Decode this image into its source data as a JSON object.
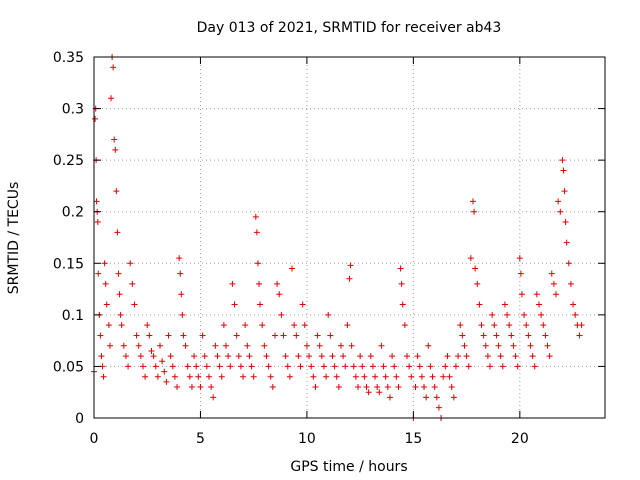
{
  "chart_data": {
    "type": "scatter",
    "title": "Day 013 of 2021, SRMTID for receiver ab43",
    "xlabel": "GPS time / hours",
    "ylabel": "SRMTID / TECUs",
    "xlim": [
      0,
      24
    ],
    "ylim": [
      0,
      0.35
    ],
    "x_ticks": [
      0,
      5,
      10,
      15,
      20
    ],
    "x_tick_labels": [
      "0",
      "5",
      "10",
      "15",
      "20"
    ],
    "y_ticks": [
      0,
      0.05,
      0.1,
      0.15,
      0.2,
      0.25,
      0.3,
      0.35
    ],
    "y_tick_labels": [
      "0",
      "0.05",
      "0.1",
      "0.15",
      "0.2",
      "0.25",
      "0.3",
      "0.35"
    ],
    "grid": true,
    "marker": "+",
    "color": "#e00000",
    "description": "dense per-satellite scatter; elevated values near 0-1 h and 21-23 h, minimum near 13-16 h",
    "series": [
      {
        "name": "SRMTID",
        "points": [
          [
            0.0,
            0.045
          ],
          [
            0.05,
            0.29
          ],
          [
            0.08,
            0.3
          ],
          [
            0.1,
            0.25
          ],
          [
            0.12,
            0.21
          ],
          [
            0.15,
            0.2
          ],
          [
            0.18,
            0.19
          ],
          [
            0.2,
            0.14
          ],
          [
            0.25,
            0.1
          ],
          [
            0.3,
            0.08
          ],
          [
            0.35,
            0.06
          ],
          [
            0.4,
            0.05
          ],
          [
            0.45,
            0.04
          ],
          [
            0.5,
            0.15
          ],
          [
            0.55,
            0.13
          ],
          [
            0.6,
            0.11
          ],
          [
            0.7,
            0.09
          ],
          [
            0.75,
            0.07
          ],
          [
            0.8,
            0.31
          ],
          [
            0.85,
            0.35
          ],
          [
            0.9,
            0.34
          ],
          [
            0.95,
            0.27
          ],
          [
            1.0,
            0.26
          ],
          [
            1.05,
            0.22
          ],
          [
            1.1,
            0.18
          ],
          [
            1.15,
            0.14
          ],
          [
            1.2,
            0.12
          ],
          [
            1.25,
            0.1
          ],
          [
            1.3,
            0.09
          ],
          [
            1.4,
            0.07
          ],
          [
            1.5,
            0.06
          ],
          [
            1.6,
            0.05
          ],
          [
            1.7,
            0.15
          ],
          [
            1.8,
            0.13
          ],
          [
            1.9,
            0.11
          ],
          [
            2.0,
            0.08
          ],
          [
            2.1,
            0.07
          ],
          [
            2.2,
            0.06
          ],
          [
            2.3,
            0.05
          ],
          [
            2.4,
            0.04
          ],
          [
            2.5,
            0.09
          ],
          [
            2.6,
            0.08
          ],
          [
            2.7,
            0.065
          ],
          [
            2.8,
            0.06
          ],
          [
            2.9,
            0.05
          ],
          [
            3.0,
            0.04
          ],
          [
            3.1,
            0.07
          ],
          [
            3.2,
            0.055
          ],
          [
            3.3,
            0.045
          ],
          [
            3.4,
            0.035
          ],
          [
            3.5,
            0.08
          ],
          [
            3.6,
            0.06
          ],
          [
            3.7,
            0.05
          ],
          [
            3.8,
            0.04
          ],
          [
            3.9,
            0.03
          ],
          [
            4.0,
            0.155
          ],
          [
            4.05,
            0.14
          ],
          [
            4.1,
            0.12
          ],
          [
            4.15,
            0.1
          ],
          [
            4.2,
            0.08
          ],
          [
            4.3,
            0.07
          ],
          [
            4.4,
            0.05
          ],
          [
            4.5,
            0.04
          ],
          [
            4.6,
            0.03
          ],
          [
            4.7,
            0.06
          ],
          [
            4.8,
            0.05
          ],
          [
            4.9,
            0.04
          ],
          [
            5.0,
            0.03
          ],
          [
            5.1,
            0.08
          ],
          [
            5.2,
            0.06
          ],
          [
            5.3,
            0.05
          ],
          [
            5.4,
            0.04
          ],
          [
            5.5,
            0.03
          ],
          [
            5.6,
            0.02
          ],
          [
            5.7,
            0.07
          ],
          [
            5.8,
            0.06
          ],
          [
            5.9,
            0.05
          ],
          [
            6.0,
            0.04
          ],
          [
            6.1,
            0.09
          ],
          [
            6.2,
            0.07
          ],
          [
            6.3,
            0.06
          ],
          [
            6.4,
            0.05
          ],
          [
            6.5,
            0.13
          ],
          [
            6.6,
            0.11
          ],
          [
            6.7,
            0.08
          ],
          [
            6.8,
            0.06
          ],
          [
            6.9,
            0.05
          ],
          [
            7.0,
            0.04
          ],
          [
            7.1,
            0.09
          ],
          [
            7.2,
            0.07
          ],
          [
            7.3,
            0.06
          ],
          [
            7.4,
            0.05
          ],
          [
            7.5,
            0.04
          ],
          [
            7.6,
            0.195
          ],
          [
            7.65,
            0.18
          ],
          [
            7.7,
            0.15
          ],
          [
            7.75,
            0.13
          ],
          [
            7.8,
            0.11
          ],
          [
            7.9,
            0.09
          ],
          [
            8.0,
            0.07
          ],
          [
            8.1,
            0.06
          ],
          [
            8.2,
            0.05
          ],
          [
            8.3,
            0.04
          ],
          [
            8.4,
            0.03
          ],
          [
            8.5,
            0.08
          ],
          [
            8.6,
            0.13
          ],
          [
            8.7,
            0.12
          ],
          [
            8.8,
            0.1
          ],
          [
            8.9,
            0.08
          ],
          [
            9.0,
            0.06
          ],
          [
            9.1,
            0.05
          ],
          [
            9.2,
            0.04
          ],
          [
            9.3,
            0.145
          ],
          [
            9.4,
            0.09
          ],
          [
            9.5,
            0.08
          ],
          [
            9.6,
            0.06
          ],
          [
            9.7,
            0.05
          ],
          [
            9.8,
            0.11
          ],
          [
            9.9,
            0.09
          ],
          [
            10.0,
            0.07
          ],
          [
            10.1,
            0.06
          ],
          [
            10.2,
            0.05
          ],
          [
            10.3,
            0.04
          ],
          [
            10.4,
            0.03
          ],
          [
            10.5,
            0.08
          ],
          [
            10.6,
            0.07
          ],
          [
            10.7,
            0.06
          ],
          [
            10.8,
            0.05
          ],
          [
            10.9,
            0.04
          ],
          [
            11.0,
            0.1
          ],
          [
            11.1,
            0.08
          ],
          [
            11.2,
            0.06
          ],
          [
            11.3,
            0.05
          ],
          [
            11.4,
            0.04
          ],
          [
            11.5,
            0.03
          ],
          [
            11.6,
            0.07
          ],
          [
            11.7,
            0.06
          ],
          [
            11.8,
            0.05
          ],
          [
            11.9,
            0.09
          ],
          [
            12.0,
            0.135
          ],
          [
            12.05,
            0.148
          ],
          [
            12.1,
            0.07
          ],
          [
            12.2,
            0.05
          ],
          [
            12.3,
            0.04
          ],
          [
            12.4,
            0.03
          ],
          [
            12.5,
            0.06
          ],
          [
            12.6,
            0.05
          ],
          [
            12.7,
            0.04
          ],
          [
            12.8,
            0.03
          ],
          [
            12.9,
            0.025
          ],
          [
            13.0,
            0.06
          ],
          [
            13.1,
            0.05
          ],
          [
            13.2,
            0.04
          ],
          [
            13.3,
            0.03
          ],
          [
            13.4,
            0.025
          ],
          [
            13.5,
            0.07
          ],
          [
            13.6,
            0.05
          ],
          [
            13.7,
            0.04
          ],
          [
            13.8,
            0.03
          ],
          [
            13.9,
            0.02
          ],
          [
            14.0,
            0.06
          ],
          [
            14.1,
            0.05
          ],
          [
            14.2,
            0.04
          ],
          [
            14.3,
            0.03
          ],
          [
            14.4,
            0.145
          ],
          [
            14.45,
            0.13
          ],
          [
            14.5,
            0.11
          ],
          [
            14.6,
            0.09
          ],
          [
            14.7,
            0.06
          ],
          [
            14.8,
            0.05
          ],
          [
            14.9,
            0.04
          ],
          [
            15.0,
            0.0
          ],
          [
            15.1,
            0.03
          ],
          [
            15.2,
            0.06
          ],
          [
            15.3,
            0.05
          ],
          [
            15.4,
            0.04
          ],
          [
            15.5,
            0.03
          ],
          [
            15.6,
            0.02
          ],
          [
            15.7,
            0.07
          ],
          [
            15.8,
            0.05
          ],
          [
            15.9,
            0.04
          ],
          [
            16.0,
            0.03
          ],
          [
            16.1,
            0.02
          ],
          [
            16.2,
            0.01
          ],
          [
            16.3,
            0.0
          ],
          [
            16.4,
            0.04
          ],
          [
            16.5,
            0.05
          ],
          [
            16.6,
            0.06
          ],
          [
            16.7,
            0.04
          ],
          [
            16.8,
            0.03
          ],
          [
            16.9,
            0.02
          ],
          [
            17.0,
            0.05
          ],
          [
            17.1,
            0.06
          ],
          [
            17.2,
            0.09
          ],
          [
            17.3,
            0.08
          ],
          [
            17.4,
            0.07
          ],
          [
            17.5,
            0.06
          ],
          [
            17.6,
            0.05
          ],
          [
            17.7,
            0.155
          ],
          [
            17.8,
            0.21
          ],
          [
            17.85,
            0.2
          ],
          [
            17.9,
            0.145
          ],
          [
            18.0,
            0.13
          ],
          [
            18.1,
            0.11
          ],
          [
            18.2,
            0.09
          ],
          [
            18.3,
            0.08
          ],
          [
            18.4,
            0.07
          ],
          [
            18.5,
            0.06
          ],
          [
            18.6,
            0.05
          ],
          [
            18.7,
            0.1
          ],
          [
            18.8,
            0.09
          ],
          [
            18.9,
            0.08
          ],
          [
            19.0,
            0.07
          ],
          [
            19.1,
            0.06
          ],
          [
            19.2,
            0.05
          ],
          [
            19.3,
            0.11
          ],
          [
            19.4,
            0.1
          ],
          [
            19.5,
            0.09
          ],
          [
            19.6,
            0.08
          ],
          [
            19.7,
            0.07
          ],
          [
            19.8,
            0.06
          ],
          [
            19.9,
            0.05
          ],
          [
            20.0,
            0.155
          ],
          [
            20.05,
            0.14
          ],
          [
            20.1,
            0.12
          ],
          [
            20.2,
            0.1
          ],
          [
            20.3,
            0.09
          ],
          [
            20.4,
            0.08
          ],
          [
            20.5,
            0.07
          ],
          [
            20.6,
            0.06
          ],
          [
            20.7,
            0.05
          ],
          [
            20.8,
            0.12
          ],
          [
            20.9,
            0.11
          ],
          [
            21.0,
            0.1
          ],
          [
            21.1,
            0.09
          ],
          [
            21.2,
            0.08
          ],
          [
            21.3,
            0.07
          ],
          [
            21.4,
            0.06
          ],
          [
            21.5,
            0.14
          ],
          [
            21.6,
            0.13
          ],
          [
            21.7,
            0.12
          ],
          [
            21.8,
            0.21
          ],
          [
            21.9,
            0.2
          ],
          [
            22.0,
            0.25
          ],
          [
            22.05,
            0.24
          ],
          [
            22.1,
            0.22
          ],
          [
            22.15,
            0.19
          ],
          [
            22.2,
            0.17
          ],
          [
            22.3,
            0.15
          ],
          [
            22.4,
            0.13
          ],
          [
            22.5,
            0.11
          ],
          [
            22.6,
            0.1
          ],
          [
            22.7,
            0.09
          ],
          [
            22.8,
            0.08
          ],
          [
            22.9,
            0.09
          ]
        ]
      }
    ]
  }
}
